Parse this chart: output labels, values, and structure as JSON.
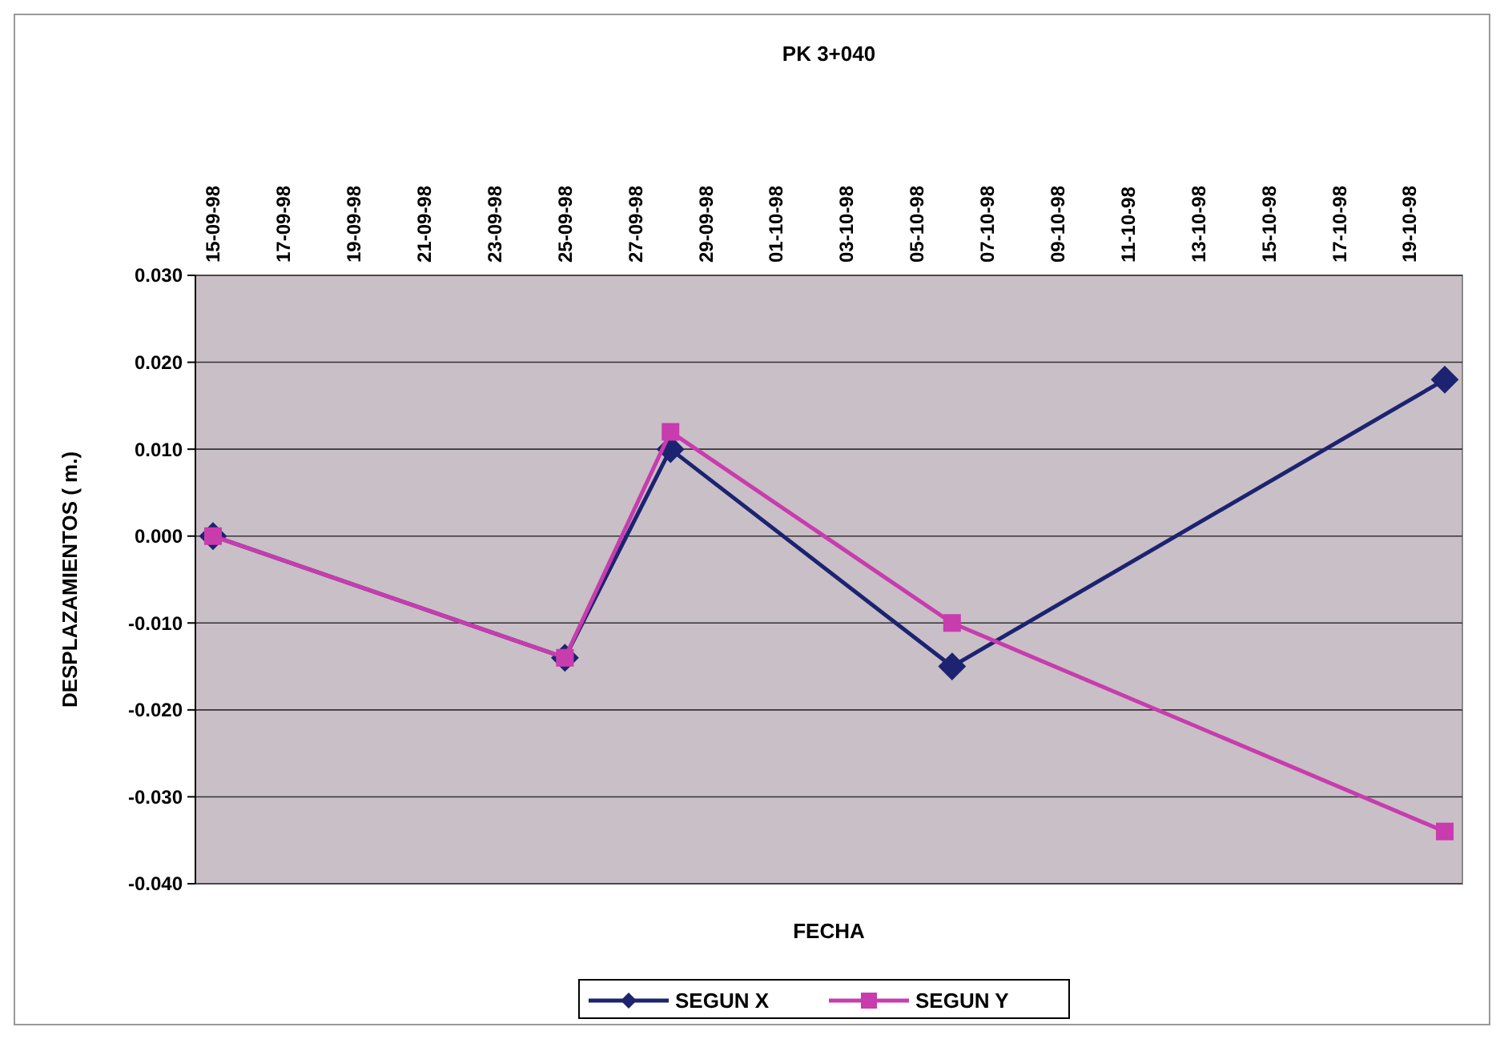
{
  "chart_data": {
    "type": "line",
    "title": "PK 3+040",
    "xlabel": "FECHA",
    "ylabel": "DESPLAZAMIENTOS ( m.)",
    "x": [
      "1998-09-15",
      "1998-09-25",
      "1998-09-28",
      "1998-10-06",
      "1998-10-20"
    ],
    "series": [
      {
        "name": "SEGUN X",
        "color": "#1c2370",
        "marker": "diamond",
        "values": [
          0.0,
          -0.014,
          0.01,
          -0.015,
          0.018
        ]
      },
      {
        "name": "SEGUN Y",
        "color": "#c83cae",
        "marker": "square",
        "values": [
          0.0,
          -0.014,
          0.012,
          -0.01,
          -0.034
        ]
      }
    ],
    "xlim": [
      "1998-09-14T12:00",
      "1998-10-20T12:00"
    ],
    "xticks": [
      {
        "value": "1998-09-15",
        "label": "15-09-98"
      },
      {
        "value": "1998-09-17",
        "label": "17-09-98"
      },
      {
        "value": "1998-09-19",
        "label": "19-09-98"
      },
      {
        "value": "1998-09-21",
        "label": "21-09-98"
      },
      {
        "value": "1998-09-23",
        "label": "23-09-98"
      },
      {
        "value": "1998-09-25",
        "label": "25-09-98"
      },
      {
        "value": "1998-09-27",
        "label": "27-09-98"
      },
      {
        "value": "1998-09-29",
        "label": "29-09-98"
      },
      {
        "value": "1998-10-01",
        "label": "01-10-98"
      },
      {
        "value": "1998-10-03",
        "label": "03-10-98"
      },
      {
        "value": "1998-10-05",
        "label": "05-10-98"
      },
      {
        "value": "1998-10-07",
        "label": "07-10-98"
      },
      {
        "value": "1998-10-09",
        "label": "09-10-98"
      },
      {
        "value": "1998-10-11",
        "label": "11-10-98"
      },
      {
        "value": "1998-10-13",
        "label": "13-10-98"
      },
      {
        "value": "1998-10-15",
        "label": "15-10-98"
      },
      {
        "value": "1998-10-17",
        "label": "17-10-98"
      },
      {
        "value": "1998-10-19",
        "label": "19-10-98"
      }
    ],
    "ylim": [
      -0.04,
      0.03
    ],
    "yticks": [
      {
        "value": 0.03,
        "label": "0.030"
      },
      {
        "value": 0.02,
        "label": "0.020"
      },
      {
        "value": 0.01,
        "label": "0.010"
      },
      {
        "value": 0,
        "label": "0.000"
      },
      {
        "value": -0.01,
        "label": "-0.010"
      },
      {
        "value": -0.02,
        "label": "-0.020"
      },
      {
        "value": -0.03,
        "label": "-0.030"
      },
      {
        "value": -0.04,
        "label": "-0.040"
      }
    ],
    "grid": "y",
    "legend": "bottom"
  }
}
